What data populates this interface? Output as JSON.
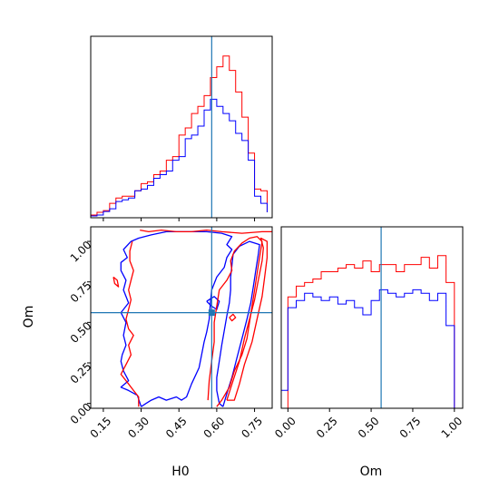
{
  "chart_data": [
    {
      "type": "histogram",
      "panel": "top-left",
      "parameter": "H0",
      "xlim": [
        0.1,
        0.82
      ],
      "truth": 0.58,
      "bins": [
        0.1,
        0.125,
        0.15,
        0.175,
        0.2,
        0.225,
        0.25,
        0.275,
        0.3,
        0.325,
        0.35,
        0.375,
        0.4,
        0.425,
        0.45,
        0.475,
        0.5,
        0.525,
        0.55,
        0.575,
        0.6,
        0.625,
        0.65,
        0.675,
        0.7,
        0.725,
        0.75,
        0.775,
        0.8
      ],
      "series": [
        {
          "color": "#ff0000",
          "values": [
            0.015,
            0.03,
            0.04,
            0.08,
            0.11,
            0.12,
            0.12,
            0.15,
            0.19,
            0.2,
            0.24,
            0.26,
            0.32,
            0.34,
            0.46,
            0.5,
            0.58,
            0.62,
            0.68,
            0.78,
            0.84,
            0.9,
            0.82,
            0.7,
            0.56,
            0.36,
            0.16,
            0.15,
            0.03
          ]
        },
        {
          "color": "#0000ff",
          "values": [
            0.01,
            0.015,
            0.035,
            0.05,
            0.09,
            0.1,
            0.11,
            0.15,
            0.16,
            0.18,
            0.22,
            0.24,
            0.26,
            0.32,
            0.34,
            0.44,
            0.46,
            0.51,
            0.6,
            0.66,
            0.62,
            0.58,
            0.54,
            0.47,
            0.43,
            0.32,
            0.12,
            0.08,
            0.03
          ]
        }
      ]
    },
    {
      "type": "contour",
      "panel": "bottom-left",
      "xlabel": "H0",
      "ylabel": "Om",
      "xlim": [
        0.1,
        0.82
      ],
      "ylim": [
        -0.03,
        1.09
      ],
      "xticks": [
        "0.15",
        "0.30",
        "0.45",
        "0.60",
        "0.75"
      ],
      "xtick_values": [
        0.15,
        0.3,
        0.45,
        0.6,
        0.75
      ],
      "yticks": [
        "0.00",
        "0.25",
        "0.50",
        "0.75",
        "1.00"
      ],
      "ytick_values": [
        0.0,
        0.25,
        0.5,
        0.75,
        1.0
      ],
      "truth": {
        "H0": 0.58,
        "Om": 0.56
      },
      "contours": [
        {
          "color": "#0000ff",
          "points": [
            [
              0.3,
              -0.02
            ],
            [
              0.285,
              0.05
            ],
            [
              0.25,
              0.08
            ],
            [
              0.22,
              0.1
            ],
            [
              0.25,
              0.14
            ],
            [
              0.23,
              0.2
            ],
            [
              0.22,
              0.26
            ],
            [
              0.225,
              0.3
            ],
            [
              0.24,
              0.36
            ],
            [
              0.23,
              0.42
            ],
            [
              0.24,
              0.5
            ],
            [
              0.22,
              0.56
            ],
            [
              0.25,
              0.62
            ],
            [
              0.23,
              0.7
            ],
            [
              0.24,
              0.76
            ],
            [
              0.22,
              0.82
            ],
            [
              0.22,
              0.87
            ],
            [
              0.245,
              0.9
            ],
            [
              0.23,
              0.95
            ],
            [
              0.26,
              1.0
            ],
            [
              0.29,
              1.02
            ],
            [
              0.34,
              1.04
            ],
            [
              0.4,
              1.06
            ],
            [
              0.48,
              1.06
            ],
            [
              0.56,
              1.06
            ],
            [
              0.62,
              1.05
            ],
            [
              0.66,
              1.03
            ],
            [
              0.64,
              0.98
            ],
            [
              0.66,
              0.95
            ],
            [
              0.64,
              0.9
            ],
            [
              0.63,
              0.84
            ],
            [
              0.6,
              0.78
            ],
            [
              0.58,
              0.7
            ],
            [
              0.575,
              0.62
            ],
            [
              0.57,
              0.52
            ],
            [
              0.56,
              0.44
            ],
            [
              0.55,
              0.38
            ],
            [
              0.54,
              0.3
            ],
            [
              0.53,
              0.22
            ],
            [
              0.5,
              0.12
            ],
            [
              0.48,
              0.04
            ],
            [
              0.46,
              0.02
            ],
            [
              0.44,
              0.04
            ],
            [
              0.4,
              0.02
            ],
            [
              0.37,
              0.04
            ],
            [
              0.34,
              0.02
            ],
            [
              0.32,
              0.0
            ],
            [
              0.3,
              -0.02
            ]
          ]
        },
        {
          "color": "#0000ff",
          "points": [
            [
              0.625,
              -0.02
            ],
            [
              0.64,
              0.06
            ],
            [
              0.66,
              0.16
            ],
            [
              0.68,
              0.28
            ],
            [
              0.7,
              0.4
            ],
            [
              0.72,
              0.52
            ],
            [
              0.735,
              0.62
            ],
            [
              0.745,
              0.72
            ],
            [
              0.755,
              0.82
            ],
            [
              0.765,
              0.92
            ],
            [
              0.77,
              0.98
            ],
            [
              0.73,
              1.0
            ],
            [
              0.69,
              0.97
            ],
            [
              0.665,
              0.92
            ],
            [
              0.66,
              0.85
            ],
            [
              0.655,
              0.78
            ],
            [
              0.655,
              0.7
            ],
            [
              0.65,
              0.62
            ],
            [
              0.64,
              0.54
            ],
            [
              0.63,
              0.45
            ],
            [
              0.62,
              0.36
            ],
            [
              0.61,
              0.26
            ],
            [
              0.6,
              0.16
            ],
            [
              0.6,
              0.08
            ],
            [
              0.61,
              0.0
            ],
            [
              0.625,
              -0.02
            ]
          ]
        },
        {
          "color": "#0000ff",
          "points": [
            [
              0.56,
              0.63
            ],
            [
              0.58,
              0.6
            ],
            [
              0.6,
              0.58
            ],
            [
              0.61,
              0.63
            ],
            [
              0.59,
              0.66
            ],
            [
              0.56,
              0.63
            ]
          ]
        },
        {
          "color": "#ff0000",
          "points": [
            [
              0.265,
              1.0
            ],
            [
              0.255,
              0.94
            ],
            [
              0.255,
              0.88
            ],
            [
              0.27,
              0.82
            ],
            [
              0.26,
              0.76
            ],
            [
              0.25,
              0.7
            ],
            [
              0.26,
              0.64
            ],
            [
              0.25,
              0.58
            ],
            [
              0.24,
              0.52
            ],
            [
              0.25,
              0.46
            ],
            [
              0.27,
              0.42
            ],
            [
              0.25,
              0.36
            ],
            [
              0.26,
              0.3
            ],
            [
              0.24,
              0.24
            ],
            [
              0.22,
              0.18
            ],
            [
              0.25,
              0.12
            ],
            [
              0.27,
              0.08
            ],
            [
              0.29,
              0.04
            ],
            [
              0.29,
              -0.02
            ]
          ]
        },
        {
          "color": "#ff0000",
          "points": [
            [
              0.295,
              1.07
            ],
            [
              0.33,
              1.06
            ],
            [
              0.38,
              1.07
            ],
            [
              0.44,
              1.06
            ],
            [
              0.5,
              1.06
            ],
            [
              0.56,
              1.07
            ],
            [
              0.62,
              1.06
            ],
            [
              0.7,
              1.05
            ],
            [
              0.78,
              1.06
            ],
            [
              0.82,
              1.06
            ]
          ]
        },
        {
          "color": "#ff0000",
          "points": [
            [
              0.565,
              0.02
            ],
            [
              0.57,
              0.14
            ],
            [
              0.58,
              0.26
            ],
            [
              0.59,
              0.38
            ],
            [
              0.59,
              0.5
            ],
            [
              0.6,
              0.6
            ],
            [
              0.61,
              0.7
            ],
            [
              0.64,
              0.76
            ],
            [
              0.66,
              0.82
            ],
            [
              0.655,
              0.88
            ],
            [
              0.67,
              0.94
            ],
            [
              0.7,
              0.99
            ],
            [
              0.73,
              1.02
            ],
            [
              0.76,
              1.03
            ],
            [
              0.78,
              1.0
            ],
            [
              0.77,
              0.9
            ],
            [
              0.76,
              0.8
            ],
            [
              0.75,
              0.7
            ],
            [
              0.74,
              0.6
            ],
            [
              0.73,
              0.5
            ],
            [
              0.72,
              0.4
            ],
            [
              0.7,
              0.3
            ],
            [
              0.67,
              0.2
            ],
            [
              0.65,
              0.1
            ],
            [
              0.62,
              0.02
            ],
            [
              0.6,
              -0.02
            ]
          ]
        },
        {
          "color": "#ff0000",
          "points": [
            [
              0.64,
              0.02
            ],
            [
              0.665,
              0.14
            ],
            [
              0.69,
              0.26
            ],
            [
              0.71,
              0.4
            ],
            [
              0.73,
              0.52
            ],
            [
              0.75,
              0.64
            ],
            [
              0.765,
              0.76
            ],
            [
              0.78,
              0.88
            ],
            [
              0.785,
              0.96
            ],
            [
              0.775,
              1.02
            ],
            [
              0.8,
              1.0
            ],
            [
              0.8,
              0.9
            ],
            [
              0.79,
              0.78
            ],
            [
              0.78,
              0.66
            ],
            [
              0.76,
              0.52
            ],
            [
              0.74,
              0.38
            ],
            [
              0.71,
              0.24
            ],
            [
              0.69,
              0.12
            ],
            [
              0.67,
              0.02
            ],
            [
              0.64,
              0.02
            ]
          ]
        },
        {
          "color": "#ff0000",
          "points": [
            [
              0.19,
              0.78
            ],
            [
              0.205,
              0.76
            ],
            [
              0.21,
              0.72
            ],
            [
              0.195,
              0.74
            ],
            [
              0.19,
              0.78
            ]
          ]
        },
        {
          "color": "#ff0000",
          "points": [
            [
              0.65,
              0.53
            ],
            [
              0.665,
              0.55
            ],
            [
              0.675,
              0.53
            ],
            [
              0.66,
              0.51
            ],
            [
              0.65,
              0.53
            ]
          ]
        }
      ]
    },
    {
      "type": "histogram",
      "panel": "bottom-right",
      "parameter": "Om",
      "xlabel": "Om",
      "xlim": [
        -0.04,
        1.05
      ],
      "xticks": [
        "0.00",
        "0.25",
        "0.50",
        "0.75",
        "1.00"
      ],
      "xtick_values": [
        0.0,
        0.25,
        0.5,
        0.75,
        1.0
      ],
      "truth": 0.56,
      "bins": [
        -0.04,
        0.0,
        0.05,
        0.1,
        0.15,
        0.2,
        0.25,
        0.3,
        0.35,
        0.4,
        0.45,
        0.5,
        0.55,
        0.6,
        0.65,
        0.7,
        0.75,
        0.8,
        0.85,
        0.9,
        0.95,
        1.0
      ],
      "series": [
        {
          "color": "#ff0000",
          "values": [
            0.0,
            0.62,
            0.68,
            0.7,
            0.72,
            0.76,
            0.76,
            0.78,
            0.8,
            0.78,
            0.82,
            0.76,
            0.8,
            0.8,
            0.76,
            0.8,
            0.8,
            0.84,
            0.78,
            0.85,
            0.7
          ]
        },
        {
          "color": "#0000ff",
          "values": [
            0.1,
            0.56,
            0.6,
            0.64,
            0.62,
            0.6,
            0.62,
            0.58,
            0.6,
            0.56,
            0.52,
            0.6,
            0.66,
            0.64,
            0.62,
            0.64,
            0.66,
            0.64,
            0.6,
            0.64,
            0.46
          ]
        }
      ]
    }
  ]
}
